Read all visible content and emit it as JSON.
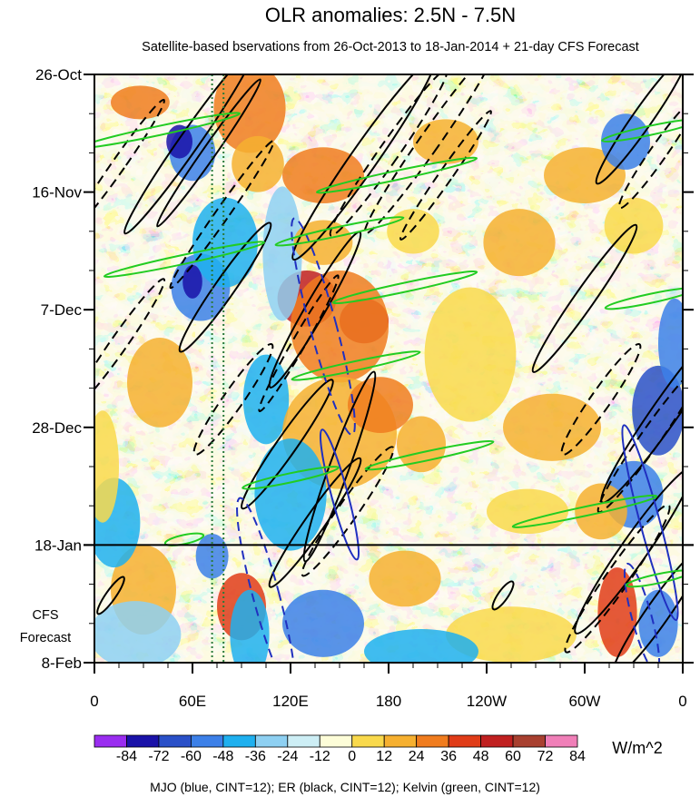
{
  "chart_data": {
    "type": "heatmap",
    "title": "OLR anomalies: 2.5N - 7.5N",
    "subtitle": "Satellite-based bservations from 26-Oct-2013 to 18-Jan-2014 + 21-day CFS Forecast",
    "x_axis": {
      "ticks": [
        "0",
        "60E",
        "120E",
        "180",
        "120W",
        "60W",
        "0"
      ],
      "tick_lon": [
        0,
        60,
        120,
        180,
        240,
        300,
        360
      ],
      "range": [
        0,
        360
      ]
    },
    "y_axis": {
      "ticks": [
        "26-Oct",
        "16-Nov",
        "7-Dec",
        "28-Dec",
        "18-Jan",
        "8-Feb"
      ],
      "tick_day": [
        0,
        21,
        42,
        63,
        84,
        105
      ],
      "range_days": [
        0,
        105
      ]
    },
    "forecast_line_day": 84,
    "forecast_label": [
      "CFS",
      "Forecast"
    ],
    "reference_lines_lon": [
      72,
      79
    ],
    "colorbar": {
      "labels": [
        "-84",
        "-72",
        "-60",
        "-48",
        "-36",
        "-24",
        "-12",
        "0",
        "12",
        "24",
        "36",
        "48",
        "60",
        "72",
        "84"
      ],
      "colors": [
        "#9a2df0",
        "#1a12a8",
        "#2a50c8",
        "#3c80e8",
        "#1fb0ef",
        "#8ed0f2",
        "#cdeef5",
        "#fdfdd8",
        "#f9d94c",
        "#f6b030",
        "#f07c1e",
        "#e03c18",
        "#c02020",
        "#a84030",
        "#f07fb8"
      ],
      "units": "W/m^2"
    },
    "footer": "MJO (blue, CINT=12); ER (black, CINT=12); Kelvin (green, CINT=12)",
    "contour_series": [
      {
        "name": "MJO",
        "color": "#2030c0",
        "cint": 12
      },
      {
        "name": "ER",
        "color": "#000000",
        "cint": 12
      },
      {
        "name": "Kelvin",
        "color": "#22cc22",
        "cint": 12
      }
    ]
  }
}
